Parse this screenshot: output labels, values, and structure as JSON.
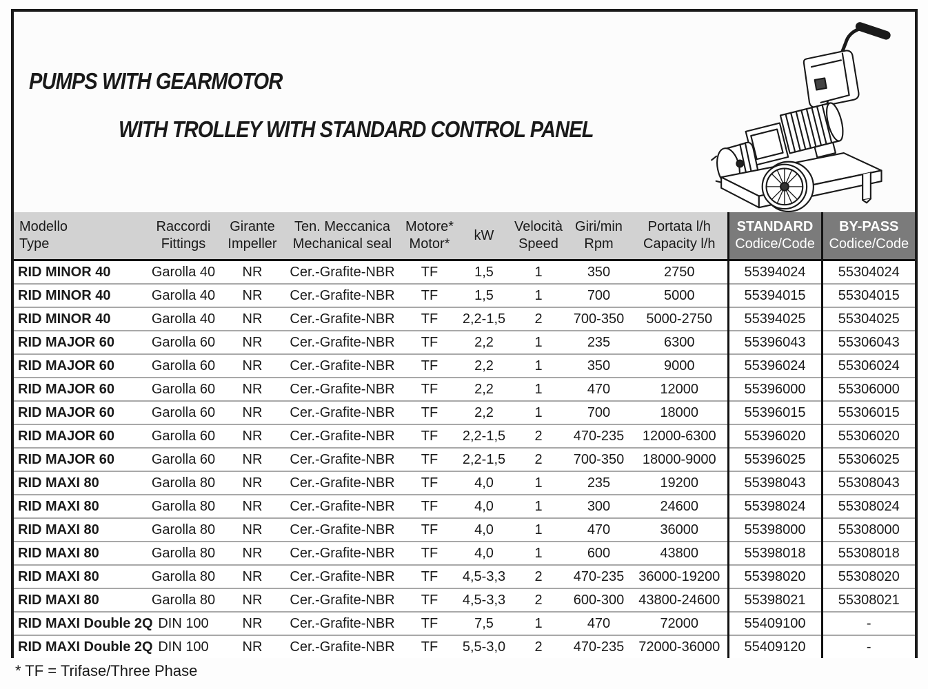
{
  "page": {
    "title_line1": "PUMPS WITH GEARMOTOR",
    "title_line2": "WITH TROLLEY WITH STANDARD CONTROL PANEL",
    "footnote": "* TF = Trifase/Three Phase"
  },
  "illustration": {
    "name": "pump-with-gearmotor-on-trolley-line-drawing"
  },
  "colors": {
    "frame_border": "#1a1a1a",
    "header_bg": "#d2d2d2",
    "header_dark_bg": "#7b7b7b",
    "header_dark_text": "#ffffff",
    "row_separator": "#a8a8a8",
    "text": "#1a1a1a"
  },
  "table": {
    "headers": [
      {
        "line1": "Modello",
        "line2": "Type",
        "dark": false
      },
      {
        "line1": "Raccordi",
        "line2": "Fittings",
        "dark": false
      },
      {
        "line1": "Girante",
        "line2": "Impeller",
        "dark": false
      },
      {
        "line1": "Ten. Meccanica",
        "line2": "Mechanical seal",
        "dark": false
      },
      {
        "line1": "Motore*",
        "line2": "Motor*",
        "dark": false
      },
      {
        "line1": "kW",
        "line2": "",
        "dark": false
      },
      {
        "line1": "Velocità",
        "line2": "Speed",
        "dark": false
      },
      {
        "line1": "Giri/min",
        "line2": "Rpm",
        "dark": false
      },
      {
        "line1": "Portata l/h",
        "line2": "Capacity l/h",
        "dark": false
      },
      {
        "line1": "STANDARD",
        "line2": "Codice/Code",
        "dark": true
      },
      {
        "line1": "BY-PASS",
        "line2": "Codice/Code",
        "dark": true
      }
    ],
    "rows": [
      [
        "RID MINOR 40",
        "Garolla 40",
        "NR",
        "Cer.-Grafite-NBR",
        "TF",
        "1,5",
        "1",
        "350",
        "2750",
        "55394024",
        "55304024"
      ],
      [
        "RID MINOR 40",
        "Garolla 40",
        "NR",
        "Cer.-Grafite-NBR",
        "TF",
        "1,5",
        "1",
        "700",
        "5000",
        "55394015",
        "55304015"
      ],
      [
        "RID MINOR 40",
        "Garolla 40",
        "NR",
        "Cer.-Grafite-NBR",
        "TF",
        "2,2-1,5",
        "2",
        "700-350",
        "5000-2750",
        "55394025",
        "55304025"
      ],
      [
        "RID MAJOR 60",
        "Garolla 60",
        "NR",
        "Cer.-Grafite-NBR",
        "TF",
        "2,2",
        "1",
        "235",
        "6300",
        "55396043",
        "55306043"
      ],
      [
        "RID MAJOR 60",
        "Garolla 60",
        "NR",
        "Cer.-Grafite-NBR",
        "TF",
        "2,2",
        "1",
        "350",
        "9000",
        "55396024",
        "55306024"
      ],
      [
        "RID MAJOR 60",
        "Garolla 60",
        "NR",
        "Cer.-Grafite-NBR",
        "TF",
        "2,2",
        "1",
        "470",
        "12000",
        "55396000",
        "55306000"
      ],
      [
        "RID MAJOR 60",
        "Garolla 60",
        "NR",
        "Cer.-Grafite-NBR",
        "TF",
        "2,2",
        "1",
        "700",
        "18000",
        "55396015",
        "55306015"
      ],
      [
        "RID MAJOR 60",
        "Garolla 60",
        "NR",
        "Cer.-Grafite-NBR",
        "TF",
        "2,2-1,5",
        "2",
        "470-235",
        "12000-6300",
        "55396020",
        "55306020"
      ],
      [
        "RID MAJOR 60",
        "Garolla 60",
        "NR",
        "Cer.-Grafite-NBR",
        "TF",
        "2,2-1,5",
        "2",
        "700-350",
        "18000-9000",
        "55396025",
        "55306025"
      ],
      [
        "RID MAXI 80",
        "Garolla 80",
        "NR",
        "Cer.-Grafite-NBR",
        "TF",
        "4,0",
        "1",
        "235",
        "19200",
        "55398043",
        "55308043"
      ],
      [
        "RID MAXI 80",
        "Garolla 80",
        "NR",
        "Cer.-Grafite-NBR",
        "TF",
        "4,0",
        "1",
        "300",
        "24600",
        "55398024",
        "55308024"
      ],
      [
        "RID MAXI 80",
        "Garolla 80",
        "NR",
        "Cer.-Grafite-NBR",
        "TF",
        "4,0",
        "1",
        "470",
        "36000",
        "55398000",
        "55308000"
      ],
      [
        "RID MAXI 80",
        "Garolla 80",
        "NR",
        "Cer.-Grafite-NBR",
        "TF",
        "4,0",
        "1",
        "600",
        "43800",
        "55398018",
        "55308018"
      ],
      [
        "RID MAXI 80",
        "Garolla 80",
        "NR",
        "Cer.-Grafite-NBR",
        "TF",
        "4,5-3,3",
        "2",
        "470-235",
        "36000-19200",
        "55398020",
        "55308020"
      ],
      [
        "RID MAXI 80",
        "Garolla 80",
        "NR",
        "Cer.-Grafite-NBR",
        "TF",
        "4,5-3,3",
        "2",
        "600-300",
        "43800-24600",
        "55398021",
        "55308021"
      ],
      [
        "RID MAXI Double 2Q",
        "DIN 100",
        "NR",
        "Cer.-Grafite-NBR",
        "TF",
        "7,5",
        "1",
        "470",
        "72000",
        "55409100",
        "-"
      ],
      [
        "RID MAXI Double 2Q",
        "DIN 100",
        "NR",
        "Cer.-Grafite-NBR",
        "TF",
        "5,5-3,0",
        "2",
        "470-235",
        "72000-36000",
        "55409120",
        "-"
      ]
    ]
  }
}
